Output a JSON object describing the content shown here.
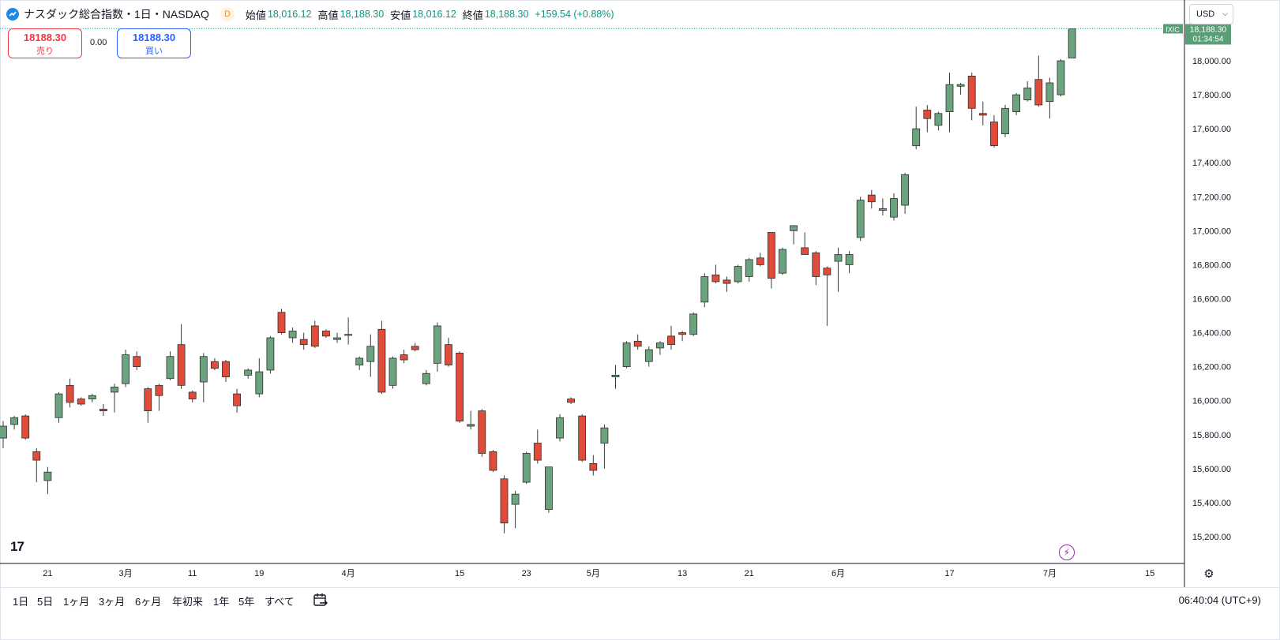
{
  "header": {
    "title": "ナスダック総合指数・1日・NASDAQ",
    "badge": "D",
    "open_label": "始値",
    "open": "18,016.12",
    "high_label": "高値",
    "high": "18,188.30",
    "low_label": "安値",
    "low": "18,016.12",
    "close_label": "終値",
    "close": "18,188.30",
    "change": "+159.54 (+0.88%)"
  },
  "trade": {
    "sell_price": "18188.30",
    "sell_label": "売り",
    "spread": "0.00",
    "buy_price": "18188.30",
    "buy_label": "買い"
  },
  "currency": "USD",
  "price_tag": {
    "symbol": "IXIC",
    "price": "18,188.30",
    "countdown": "01:34:54"
  },
  "ranges": [
    "1日",
    "5日",
    "1ヶ月",
    "3ヶ月",
    "6ヶ月",
    "年初来",
    "1年",
    "5年",
    "すべて"
  ],
  "clock": "06:40:04 (UTC+9)",
  "logo_text": "17",
  "colors": {
    "up": "#6aa37e",
    "down": "#e04b3a",
    "line": "#26a69a",
    "tag_bg": "#5a9e76"
  },
  "chart_data": {
    "type": "candlestick",
    "ylim": [
      15120,
      18300
    ],
    "y_ticks": [
      15200,
      15400,
      15600,
      15800,
      16000,
      16200,
      16400,
      16600,
      16800,
      17000,
      17200,
      17400,
      17600,
      17800,
      18000
    ],
    "y_tick_labels": [
      "15,200.00",
      "15,400.00",
      "15,600.00",
      "15,800.00",
      "16,000.00",
      "16,200.00",
      "16,400.00",
      "16,600.00",
      "16,800.00",
      "17,000.00",
      "17,200.00",
      "17,400.00",
      "17,600.00",
      "17,800.00",
      "18,000.00"
    ],
    "x_tick_labels": [
      {
        "label": "21",
        "index": 4
      },
      {
        "label": "3月",
        "index": 11
      },
      {
        "label": "11",
        "index": 17
      },
      {
        "label": "19",
        "index": 23
      },
      {
        "label": "4月",
        "index": 31
      },
      {
        "label": "15",
        "index": 41
      },
      {
        "label": "23",
        "index": 47
      },
      {
        "label": "5月",
        "index": 53
      },
      {
        "label": "13",
        "index": 61
      },
      {
        "label": "21",
        "index": 67
      },
      {
        "label": "6月",
        "index": 75
      },
      {
        "label": "17",
        "index": 85
      },
      {
        "label": "7月",
        "index": 94
      },
      {
        "label": "15",
        "index": 103
      }
    ],
    "last_price": 18188.3,
    "candles": [
      {
        "o": 15780,
        "h": 15880,
        "l": 15720,
        "c": 15850
      },
      {
        "o": 15860,
        "h": 15910,
        "l": 15830,
        "c": 15900
      },
      {
        "o": 15910,
        "h": 15920,
        "l": 15770,
        "c": 15780
      },
      {
        "o": 15700,
        "h": 15720,
        "l": 15520,
        "c": 15650
      },
      {
        "o": 15530,
        "h": 15610,
        "l": 15450,
        "c": 15580
      },
      {
        "o": 15900,
        "h": 16050,
        "l": 15870,
        "c": 16040
      },
      {
        "o": 16090,
        "h": 16130,
        "l": 15960,
        "c": 15990
      },
      {
        "o": 16010,
        "h": 16020,
        "l": 15970,
        "c": 15980
      },
      {
        "o": 16010,
        "h": 16040,
        "l": 15990,
        "c": 16030
      },
      {
        "o": 15950,
        "h": 15980,
        "l": 15910,
        "c": 15940
      },
      {
        "o": 16050,
        "h": 16100,
        "l": 15930,
        "c": 16080
      },
      {
        "o": 16100,
        "h": 16300,
        "l": 16080,
        "c": 16270
      },
      {
        "o": 16260,
        "h": 16290,
        "l": 16180,
        "c": 16200
      },
      {
        "o": 16070,
        "h": 16080,
        "l": 15870,
        "c": 15940
      },
      {
        "o": 16090,
        "h": 16100,
        "l": 15940,
        "c": 16030
      },
      {
        "o": 16130,
        "h": 16290,
        "l": 16120,
        "c": 16260
      },
      {
        "o": 16330,
        "h": 16450,
        "l": 16070,
        "c": 16090
      },
      {
        "o": 16050,
        "h": 16060,
        "l": 15990,
        "c": 16010
      },
      {
        "o": 16110,
        "h": 16280,
        "l": 15990,
        "c": 16260
      },
      {
        "o": 16230,
        "h": 16250,
        "l": 16180,
        "c": 16190
      },
      {
        "o": 16230,
        "h": 16240,
        "l": 16110,
        "c": 16140
      },
      {
        "o": 16040,
        "h": 16070,
        "l": 15930,
        "c": 15970
      },
      {
        "o": 16150,
        "h": 16190,
        "l": 16130,
        "c": 16180
      },
      {
        "o": 16040,
        "h": 16250,
        "l": 16020,
        "c": 16170
      },
      {
        "o": 16180,
        "h": 16380,
        "l": 16160,
        "c": 16370
      },
      {
        "o": 16520,
        "h": 16540,
        "l": 16390,
        "c": 16400
      },
      {
        "o": 16370,
        "h": 16430,
        "l": 16340,
        "c": 16410
      },
      {
        "o": 16360,
        "h": 16400,
        "l": 16300,
        "c": 16330
      },
      {
        "o": 16440,
        "h": 16470,
        "l": 16310,
        "c": 16320
      },
      {
        "o": 16410,
        "h": 16420,
        "l": 16370,
        "c": 16380
      },
      {
        "o": 16360,
        "h": 16400,
        "l": 16340,
        "c": 16370
      },
      {
        "o": 16390,
        "h": 16490,
        "l": 16330,
        "c": 16390
      },
      {
        "o": 16210,
        "h": 16260,
        "l": 16180,
        "c": 16250
      },
      {
        "o": 16230,
        "h": 16390,
        "l": 16140,
        "c": 16320
      },
      {
        "o": 16420,
        "h": 16470,
        "l": 16040,
        "c": 16050
      },
      {
        "o": 16090,
        "h": 16260,
        "l": 16070,
        "c": 16250
      },
      {
        "o": 16270,
        "h": 16300,
        "l": 16220,
        "c": 16240
      },
      {
        "o": 16320,
        "h": 16340,
        "l": 16290,
        "c": 16300
      },
      {
        "o": 16100,
        "h": 16180,
        "l": 16090,
        "c": 16160
      },
      {
        "o": 16220,
        "h": 16460,
        "l": 16170,
        "c": 16440
      },
      {
        "o": 16330,
        "h": 16370,
        "l": 16200,
        "c": 16210
      },
      {
        "o": 16280,
        "h": 16290,
        "l": 15870,
        "c": 15880
      },
      {
        "o": 15850,
        "h": 15940,
        "l": 15830,
        "c": 15860
      },
      {
        "o": 15940,
        "h": 15950,
        "l": 15670,
        "c": 15690
      },
      {
        "o": 15700,
        "h": 15710,
        "l": 15580,
        "c": 15590
      },
      {
        "o": 15540,
        "h": 15560,
        "l": 15220,
        "c": 15280
      },
      {
        "o": 15390,
        "h": 15470,
        "l": 15250,
        "c": 15450
      },
      {
        "o": 15520,
        "h": 15700,
        "l": 15510,
        "c": 15690
      },
      {
        "o": 15750,
        "h": 15830,
        "l": 15630,
        "c": 15650
      },
      {
        "o": 15360,
        "h": 15600,
        "l": 15340,
        "c": 15610
      },
      {
        "o": 15780,
        "h": 15920,
        "l": 15760,
        "c": 15900
      },
      {
        "o": 16010,
        "h": 16020,
        "l": 15980,
        "c": 15990
      },
      {
        "o": 15910,
        "h": 15920,
        "l": 15640,
        "c": 15650
      },
      {
        "o": 15630,
        "h": 15680,
        "l": 15560,
        "c": 15590
      },
      {
        "o": 15750,
        "h": 15860,
        "l": 15600,
        "c": 15840
      },
      {
        "o": 16140,
        "h": 16210,
        "l": 16070,
        "c": 16150
      },
      {
        "o": 16200,
        "h": 16350,
        "l": 16190,
        "c": 16340
      },
      {
        "o": 16350,
        "h": 16390,
        "l": 16300,
        "c": 16320
      },
      {
        "o": 16230,
        "h": 16320,
        "l": 16200,
        "c": 16300
      },
      {
        "o": 16310,
        "h": 16350,
        "l": 16270,
        "c": 16340
      },
      {
        "o": 16380,
        "h": 16440,
        "l": 16300,
        "c": 16330
      },
      {
        "o": 16400,
        "h": 16410,
        "l": 16350,
        "c": 16390
      },
      {
        "o": 16390,
        "h": 16520,
        "l": 16380,
        "c": 16510
      },
      {
        "o": 16580,
        "h": 16750,
        "l": 16550,
        "c": 16730
      },
      {
        "o": 16740,
        "h": 16800,
        "l": 16690,
        "c": 16700
      },
      {
        "o": 16710,
        "h": 16730,
        "l": 16640,
        "c": 16690
      },
      {
        "o": 16700,
        "h": 16800,
        "l": 16690,
        "c": 16790
      },
      {
        "o": 16730,
        "h": 16840,
        "l": 16700,
        "c": 16830
      },
      {
        "o": 16840,
        "h": 16870,
        "l": 16790,
        "c": 16800
      },
      {
        "o": 16990,
        "h": 16990,
        "l": 16660,
        "c": 16720
      },
      {
        "o": 16750,
        "h": 16900,
        "l": 16740,
        "c": 16890
      },
      {
        "o": 17000,
        "h": 17030,
        "l": 16920,
        "c": 17030
      },
      {
        "o": 16900,
        "h": 16990,
        "l": 16870,
        "c": 16860
      },
      {
        "o": 16870,
        "h": 16880,
        "l": 16680,
        "c": 16730
      },
      {
        "o": 16780,
        "h": 16790,
        "l": 16440,
        "c": 16740
      },
      {
        "o": 16820,
        "h": 16900,
        "l": 16640,
        "c": 16860
      },
      {
        "o": 16800,
        "h": 16880,
        "l": 16750,
        "c": 16860
      },
      {
        "o": 16960,
        "h": 17200,
        "l": 16940,
        "c": 17180
      },
      {
        "o": 17210,
        "h": 17240,
        "l": 17130,
        "c": 17170
      },
      {
        "o": 17120,
        "h": 17190,
        "l": 17090,
        "c": 17130
      },
      {
        "o": 17080,
        "h": 17220,
        "l": 17060,
        "c": 17190
      },
      {
        "o": 17150,
        "h": 17340,
        "l": 17100,
        "c": 17330
      },
      {
        "o": 17500,
        "h": 17730,
        "l": 17480,
        "c": 17600
      },
      {
        "o": 17710,
        "h": 17740,
        "l": 17580,
        "c": 17660
      },
      {
        "o": 17620,
        "h": 17700,
        "l": 17590,
        "c": 17690
      },
      {
        "o": 17700,
        "h": 17930,
        "l": 17580,
        "c": 17860
      },
      {
        "o": 17850,
        "h": 17870,
        "l": 17800,
        "c": 17860
      },
      {
        "o": 17910,
        "h": 17930,
        "l": 17650,
        "c": 17720
      },
      {
        "o": 17690,
        "h": 17760,
        "l": 17620,
        "c": 17680
      },
      {
        "o": 17640,
        "h": 17680,
        "l": 17490,
        "c": 17500
      },
      {
        "o": 17570,
        "h": 17740,
        "l": 17550,
        "c": 17720
      },
      {
        "o": 17700,
        "h": 17810,
        "l": 17680,
        "c": 17800
      },
      {
        "o": 17770,
        "h": 17880,
        "l": 17760,
        "c": 17840
      },
      {
        "o": 17890,
        "h": 18030,
        "l": 17730,
        "c": 17740
      },
      {
        "o": 17760,
        "h": 17900,
        "l": 17660,
        "c": 17870
      },
      {
        "o": 17800,
        "h": 18010,
        "l": 17790,
        "c": 18000
      },
      {
        "o": 18016.12,
        "h": 18188.3,
        "l": 18016.12,
        "c": 18188.3
      }
    ]
  }
}
